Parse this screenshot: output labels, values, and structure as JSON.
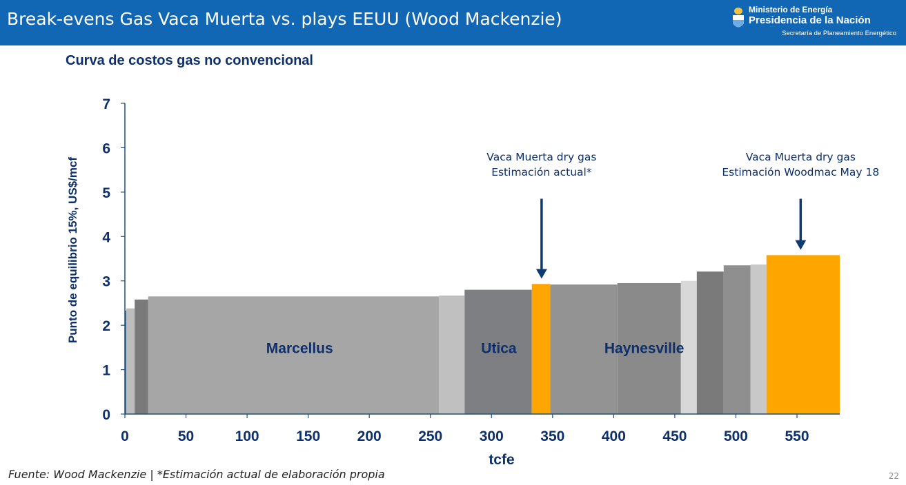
{
  "header": {
    "title": "Break-evens Gas Vaca Muerta vs. plays EEUU (Wood Mackenzie)",
    "ministry_line1": "Ministerio de Energía",
    "ministry_line2": "Presidencia de la Nación",
    "ministry_line3": "Secretaría de Planeamiento Energético"
  },
  "subtitle": "Curva de costos gas no convencional",
  "chart_data": {
    "type": "bar",
    "subtype": "cost-curve (variable-width bars)",
    "xlabel": "tcfe",
    "ylabel": "Punto de equilibrio 15%, US$/mcf",
    "xlim": [
      0,
      585
    ],
    "ylim": [
      0,
      7
    ],
    "xticks": [
      0,
      50,
      100,
      150,
      200,
      250,
      300,
      350,
      400,
      450,
      500,
      550
    ],
    "yticks": [
      0,
      1,
      2,
      3,
      4,
      5,
      6,
      7
    ],
    "grid": false,
    "segments": [
      {
        "x0": 0,
        "x1": 1,
        "value": 2.33,
        "color": "#1f4e79"
      },
      {
        "x0": 1,
        "x1": 8,
        "value": 2.38,
        "color": "#bdbdbd"
      },
      {
        "x0": 8,
        "x1": 19,
        "value": 2.58,
        "color": "#7a7a7a"
      },
      {
        "x0": 19,
        "x1": 257,
        "value": 2.65,
        "color": "#a6a6a6"
      },
      {
        "x0": 257,
        "x1": 278,
        "value": 2.67,
        "color": "#c0c0c0"
      },
      {
        "x0": 278,
        "x1": 333,
        "value": 2.8,
        "color": "#7e7f82"
      },
      {
        "x0": 333,
        "x1": 348,
        "value": 2.93,
        "color": "#ffa500"
      },
      {
        "x0": 348,
        "x1": 403,
        "value": 2.92,
        "color": "#939393"
      },
      {
        "x0": 403,
        "x1": 455,
        "value": 2.95,
        "color": "#8a8a8a"
      },
      {
        "x0": 455,
        "x1": 468,
        "value": 3.0,
        "color": "#d8d8d8"
      },
      {
        "x0": 468,
        "x1": 490,
        "value": 3.21,
        "color": "#7a7a7a"
      },
      {
        "x0": 490,
        "x1": 512,
        "value": 3.35,
        "color": "#8f8f8f"
      },
      {
        "x0": 512,
        "x1": 525,
        "value": 3.37,
        "color": "#c8c8c8"
      },
      {
        "x0": 525,
        "x1": 585,
        "value": 3.58,
        "color": "#ffa500"
      }
    ],
    "region_labels": [
      {
        "text": "Marcellus",
        "x": 143,
        "y": 1.5
      },
      {
        "text": "Utica",
        "x": 306,
        "y": 1.5
      },
      {
        "text": "Haynesville",
        "x": 425,
        "y": 1.5
      }
    ],
    "annotations": [
      {
        "line1": "Vaca Muerta dry gas",
        "line2": "Estimación actual*",
        "x": 341,
        "y_text": 5.4,
        "arrow_from": 4.85,
        "arrow_to": 3.05
      },
      {
        "line1": "Vaca Muerta dry gas",
        "line2": "Estimación Woodmac May 18",
        "x": 553,
        "y_text": 5.4,
        "arrow_from": 4.85,
        "arrow_to": 3.7
      }
    ],
    "colors": {
      "axis": "#1f4e79",
      "text": "#0d2f6b",
      "highlight": "#ffa500"
    }
  },
  "footer": {
    "source": "Fuente: Wood Mackenzie | *Estimación actual de elaboración propia",
    "page_number": "22"
  }
}
